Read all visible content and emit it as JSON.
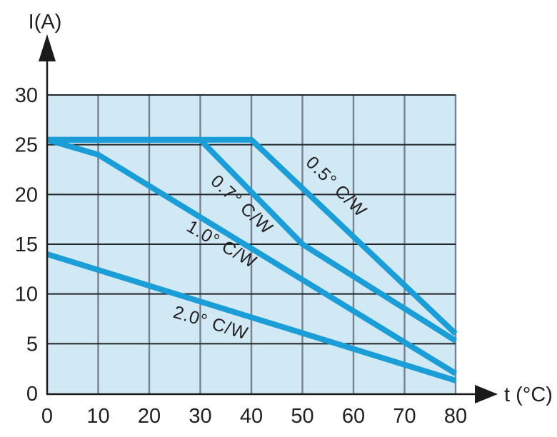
{
  "chart_data": {
    "type": "line",
    "title": "",
    "xlabel": "t (°C)",
    "ylabel": "I(A)",
    "xlim": [
      0,
      80
    ],
    "ylim": [
      0,
      30
    ],
    "x_ticks": [
      0,
      10,
      20,
      30,
      40,
      50,
      60,
      70,
      80
    ],
    "y_ticks": [
      0,
      5,
      10,
      15,
      20,
      25,
      30
    ],
    "grid": true,
    "legend_position": "inline-labels",
    "plot_bg": "#d0e9f5",
    "line_color": "#1b9dd8",
    "grid_color_h": "#21262b",
    "grid_color_v": "#78828e",
    "axis_color": "#1a1a1a",
    "text_color": "#231f20",
    "series": [
      {
        "name": "0.5° C/W",
        "points": [
          [
            0,
            25.5
          ],
          [
            40,
            25.5
          ],
          [
            80,
            6
          ]
        ]
      },
      {
        "name": "0.7° C/W",
        "points": [
          [
            0,
            25.5
          ],
          [
            30,
            25.5
          ],
          [
            50,
            15
          ],
          [
            80,
            5.3
          ]
        ]
      },
      {
        "name": "1.0° C/W",
        "points": [
          [
            0,
            25.5
          ],
          [
            10,
            24
          ],
          [
            80,
            2
          ]
        ]
      },
      {
        "name": "2.0° C/W",
        "points": [
          [
            0,
            14
          ],
          [
            80,
            1.3
          ]
        ]
      }
    ],
    "labels": [
      {
        "text": "0.5° C/W",
        "x": 56.5,
        "y": 20.7,
        "rotation": 45
      },
      {
        "text": "0.7° C/W",
        "x": 38.0,
        "y": 18.9,
        "rotation": 43
      },
      {
        "text": "1.0° C/W",
        "x": 34.1,
        "y": 14.9,
        "rotation": 30
      },
      {
        "text": "2.0° C/W",
        "x": 32.0,
        "y": 7.0,
        "rotation": 17
      }
    ]
  }
}
